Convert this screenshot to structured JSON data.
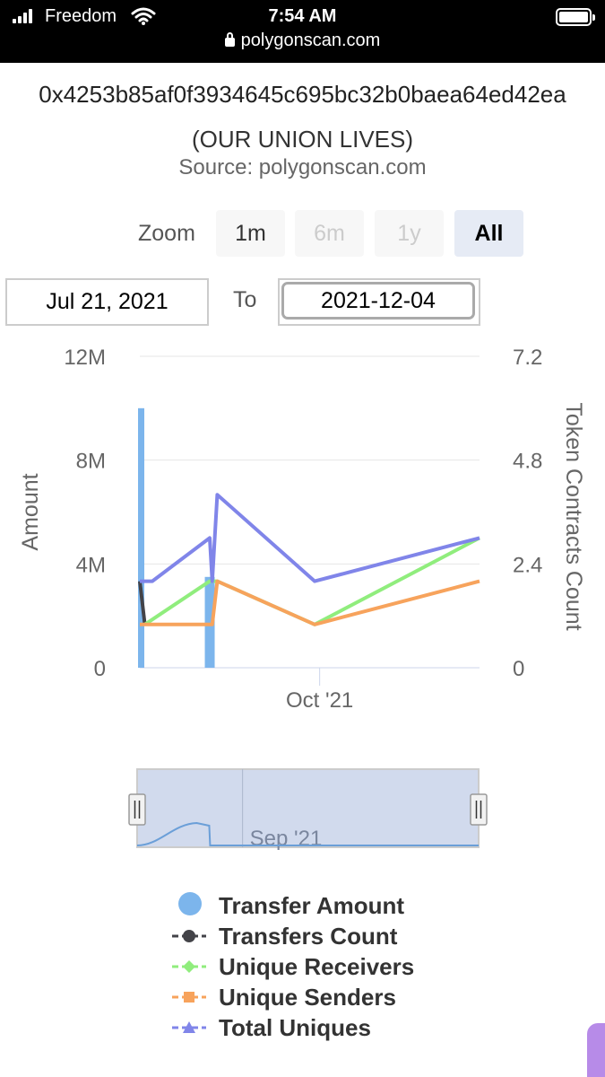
{
  "status_bar": {
    "carrier": "Freedom",
    "time": "7:54 AM",
    "url": "polygonscan.com"
  },
  "page": {
    "address": "0x4253b85af0f3934645c695bc32b0baea64ed42ea",
    "subtitle": "(OUR UNION LIVES)",
    "source": "Source: polygonscan.com"
  },
  "zoom": {
    "label": "Zoom",
    "buttons": [
      {
        "label": "1m",
        "state": "enabled"
      },
      {
        "label": "6m",
        "state": "disabled"
      },
      {
        "label": "1y",
        "state": "disabled"
      },
      {
        "label": "All",
        "state": "selected"
      }
    ]
  },
  "range": {
    "from": "Jul 21, 2021",
    "to_label": "To",
    "to": "2021-12-04"
  },
  "chart_data": {
    "type": "line",
    "x_range": [
      "2021-07-21",
      "2021-12-04"
    ],
    "x_ticks": [
      {
        "date": "2021-10-01",
        "label": "Oct '21"
      }
    ],
    "y_left": {
      "label": "Amount",
      "ticks": [
        "0",
        "4M",
        "8M",
        "12M"
      ],
      "range": [
        0,
        12000000
      ]
    },
    "y_right": {
      "label": "Token Contracts Count",
      "ticks": [
        "0",
        "2.4",
        "4.8",
        "7.2"
      ],
      "range": [
        0,
        7.2
      ]
    },
    "grid": true,
    "legend_position": "bottom",
    "series": [
      {
        "name": "Transfer Amount",
        "type": "column",
        "axis": "left",
        "color": "#7cb5ec",
        "points": [
          {
            "x": "2021-07-21",
            "y": 10000000
          },
          {
            "x": "2021-08-18",
            "y": 3500000
          }
        ]
      },
      {
        "name": "Transfers Count",
        "type": "line",
        "axis": "right",
        "color": "#434348",
        "points": [
          {
            "x": "2021-07-21",
            "y": 2
          },
          {
            "x": "2021-07-23",
            "y": 1
          }
        ]
      },
      {
        "name": "Unique Receivers",
        "type": "line",
        "axis": "right",
        "color": "#90ed7d",
        "points": [
          {
            "x": "2021-07-23",
            "y": 1
          },
          {
            "x": "2021-08-18",
            "y": 2
          },
          {
            "x": "2021-08-21",
            "y": 2
          },
          {
            "x": "2021-09-29",
            "y": 1
          },
          {
            "x": "2021-12-04",
            "y": 3
          }
        ]
      },
      {
        "name": "Unique Senders",
        "type": "line",
        "axis": "right",
        "color": "#f7a35c",
        "points": [
          {
            "x": "2021-07-21",
            "y": 1
          },
          {
            "x": "2021-08-19",
            "y": 1
          },
          {
            "x": "2021-08-21",
            "y": 2
          },
          {
            "x": "2021-09-29",
            "y": 1
          },
          {
            "x": "2021-12-04",
            "y": 2
          }
        ]
      },
      {
        "name": "Total Uniques",
        "type": "line",
        "axis": "right",
        "color": "#8085e9",
        "points": [
          {
            "x": "2021-07-21",
            "y": 2
          },
          {
            "x": "2021-07-26",
            "y": 2
          },
          {
            "x": "2021-08-18",
            "y": 3
          },
          {
            "x": "2021-08-19",
            "y": 2
          },
          {
            "x": "2021-08-21",
            "y": 4
          },
          {
            "x": "2021-09-29",
            "y": 2
          },
          {
            "x": "2021-12-04",
            "y": 3
          }
        ]
      }
    ]
  },
  "navigator": {
    "tick_label": "Sep '21",
    "tick_date": "2021-09-01",
    "selection": [
      "2021-07-21",
      "2021-12-04"
    ]
  },
  "legend": {
    "items": [
      {
        "label": "Transfer Amount",
        "symbol": "circle",
        "color": "#7cb5ec"
      },
      {
        "label": "Transfers Count",
        "symbol": "circle",
        "color": "#434348"
      },
      {
        "label": "Unique Receivers",
        "symbol": "diamond",
        "color": "#90ed7d"
      },
      {
        "label": "Unique Senders",
        "symbol": "square",
        "color": "#f7a35c"
      },
      {
        "label": "Total Uniques",
        "symbol": "triangle",
        "color": "#8085e9"
      }
    ]
  }
}
